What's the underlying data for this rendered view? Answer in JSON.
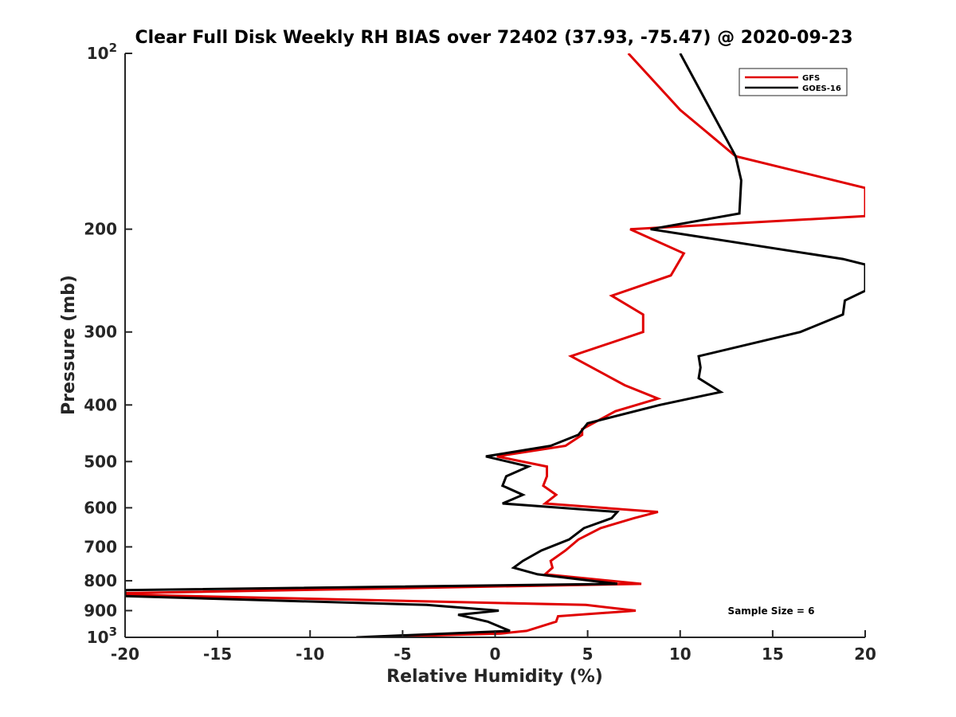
{
  "chart_data": {
    "type": "line",
    "title": "Clear Full Disk Weekly RH BIAS over 72402 (37.93, -75.47) @ 2020-09-23",
    "xlabel": "Relative Humidity (%)",
    "ylabel": "Pressure (mb)",
    "xlim": [
      -20,
      20
    ],
    "ylim": [
      100,
      1000
    ],
    "yscale": "log",
    "y_reversed": true,
    "xticks": [
      -20,
      -15,
      -10,
      -5,
      0,
      5,
      10,
      15,
      20
    ],
    "yticks": [
      {
        "value": 100,
        "base": "10",
        "exp": "2"
      },
      {
        "value": 200,
        "label": "200"
      },
      {
        "value": 300,
        "label": "300"
      },
      {
        "value": 400,
        "label": "400"
      },
      {
        "value": 500,
        "label": "500"
      },
      {
        "value": 600,
        "label": "600"
      },
      {
        "value": 700,
        "label": "700"
      },
      {
        "value": 800,
        "label": "800"
      },
      {
        "value": 900,
        "label": "900"
      },
      {
        "value": 1000,
        "base": "10",
        "exp": "3"
      }
    ],
    "legend_position": "top-right",
    "annotation": "Sample Size = 6",
    "series": [
      {
        "name": "GFS",
        "color": "#e00000",
        "points": [
          [
            7.2,
            100
          ],
          [
            10,
            125
          ],
          [
            13,
            150
          ],
          [
            20,
            170
          ],
          [
            20,
            190
          ],
          [
            7.3,
            200
          ],
          [
            10.2,
            220
          ],
          [
            9.5,
            240
          ],
          [
            6.3,
            260
          ],
          [
            8,
            280
          ],
          [
            8,
            300
          ],
          [
            4.1,
            330
          ],
          [
            7,
            370
          ],
          [
            8.8,
            390
          ],
          [
            6.5,
            410
          ],
          [
            4.7,
            440
          ],
          [
            4.7,
            450
          ],
          [
            3.8,
            470
          ],
          [
            0.1,
            490
          ],
          [
            2.8,
            510
          ],
          [
            2.8,
            530
          ],
          [
            2.6,
            550
          ],
          [
            3.3,
            570
          ],
          [
            2.7,
            590
          ],
          [
            8.8,
            610
          ],
          [
            7.5,
            625
          ],
          [
            5.7,
            650
          ],
          [
            4.5,
            680
          ],
          [
            3.8,
            710
          ],
          [
            3.0,
            740
          ],
          [
            3.1,
            760
          ],
          [
            2.7,
            780
          ],
          [
            7.9,
            810
          ],
          [
            -20,
            840
          ],
          [
            -20,
            845
          ],
          [
            4.9,
            880
          ],
          [
            7.6,
            900
          ],
          [
            3.4,
            920
          ],
          [
            3.3,
            940
          ],
          [
            1.7,
            975
          ],
          [
            0.3,
            985
          ],
          [
            -7.2,
            1000
          ]
        ]
      },
      {
        "name": "GOES-16",
        "color": "#000000",
        "points": [
          [
            10,
            100
          ],
          [
            13,
            150
          ],
          [
            13.3,
            165
          ],
          [
            13.2,
            188
          ],
          [
            8.4,
            200
          ],
          [
            18.8,
            225
          ],
          [
            20,
            230
          ],
          [
            20,
            255
          ],
          [
            18.9,
            265
          ],
          [
            18.8,
            280
          ],
          [
            16.5,
            300
          ],
          [
            11,
            330
          ],
          [
            11.1,
            345
          ],
          [
            11,
            360
          ],
          [
            12.2,
            380
          ],
          [
            8.9,
            400
          ],
          [
            5,
            430
          ],
          [
            4.5,
            450
          ],
          [
            3,
            470
          ],
          [
            -0.5,
            490
          ],
          [
            1.8,
            510
          ],
          [
            0.6,
            530
          ],
          [
            0.4,
            550
          ],
          [
            1.5,
            570
          ],
          [
            0.4,
            590
          ],
          [
            6.6,
            610
          ],
          [
            6.3,
            625
          ],
          [
            4.8,
            650
          ],
          [
            4,
            680
          ],
          [
            2.5,
            710
          ],
          [
            1.5,
            740
          ],
          [
            1.0,
            760
          ],
          [
            2.3,
            780
          ],
          [
            6.6,
            810
          ],
          [
            -20,
            830
          ],
          [
            -20,
            850
          ],
          [
            -3.7,
            880
          ],
          [
            0.2,
            900
          ],
          [
            -2,
            915
          ],
          [
            -0.4,
            940
          ],
          [
            0.8,
            975
          ],
          [
            -7.5,
            1000
          ]
        ]
      }
    ]
  }
}
